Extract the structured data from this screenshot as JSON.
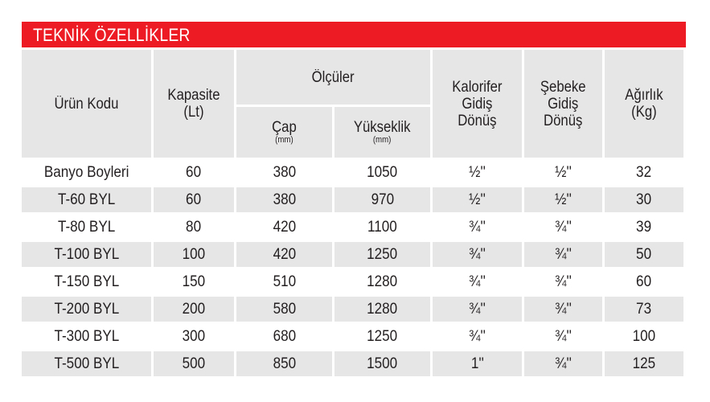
{
  "title": "TEKNİK ÖZELLİKLER",
  "headers": {
    "urun_kodu": "Ürün Kodu",
    "kapasite": "Kapasite",
    "kapasite_unit": "(Lt)",
    "olculer": "Ölçüler",
    "cap": "Çap",
    "cap_unit": "(mm)",
    "yukseklik": "Yükseklik",
    "yukseklik_unit": "(mm)",
    "kalorifer": [
      "Kalorifer",
      "Gidiş",
      "Dönüş"
    ],
    "sebeke": [
      "Şebeke",
      "Gidiş",
      "Dönüş"
    ],
    "agirlik": "Ağırlık",
    "agirlik_unit": "(Kg)"
  },
  "rows": [
    [
      "Banyo Boyleri",
      "60",
      "380",
      "1050",
      "½''",
      "½''",
      "32"
    ],
    [
      "T-60 BYL",
      "60",
      "380",
      "970",
      "½''",
      "½''",
      "30"
    ],
    [
      "T-80 BYL",
      "80",
      "420",
      "1100",
      "¾''",
      "¾''",
      "39"
    ],
    [
      "T-100 BYL",
      "100",
      "420",
      "1250",
      "¾''",
      "¾''",
      "50"
    ],
    [
      "T-150 BYL",
      "150",
      "510",
      "1280",
      "¾''",
      "¾''",
      "60"
    ],
    [
      "T-200 BYL",
      "200",
      "580",
      "1280",
      "¾''",
      "¾''",
      "73"
    ],
    [
      "T-300 BYL",
      "300",
      "680",
      "1250",
      "¾''",
      "¾''",
      "100"
    ],
    [
      "T-500 BYL",
      "500",
      "850",
      "1500",
      "1''",
      "¾''",
      "125"
    ]
  ]
}
